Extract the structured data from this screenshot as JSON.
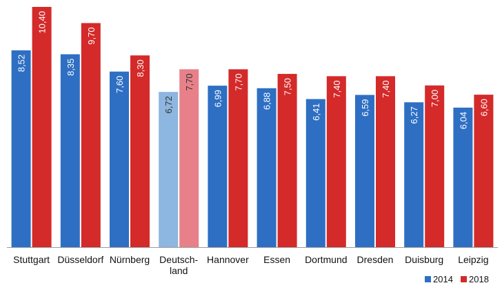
{
  "chart_data": {
    "type": "bar",
    "categories": [
      "Stuttgart",
      "Düsseldorf",
      "Nürnberg",
      "Deutsch-\nland",
      "Hannover",
      "Essen",
      "Dortmund",
      "Dresden",
      "Duisburg",
      "Leipzig"
    ],
    "series": [
      {
        "name": "2014",
        "values": [
          8.52,
          8.35,
          7.6,
          6.72,
          6.99,
          6.88,
          6.41,
          6.59,
          6.27,
          6.04
        ],
        "labels": [
          "8,52",
          "8,35",
          "7,60",
          "6,72",
          "6,99",
          "6,88",
          "6,41",
          "6,59",
          "6,27",
          "6,04"
        ],
        "color": "#2e6fc3",
        "highlight_color": "#8db6e0"
      },
      {
        "name": "2018",
        "values": [
          10.4,
          9.7,
          8.3,
          7.7,
          7.7,
          7.5,
          7.4,
          7.4,
          7.0,
          6.6
        ],
        "labels": [
          "10,40",
          "9,70",
          "8,30",
          "7,70",
          "7,70",
          "7,50",
          "7,40",
          "7,40",
          "7,00",
          "6,60"
        ],
        "color": "#d42a2a",
        "highlight_color": "#e8808a"
      }
    ],
    "highlight_category_index": 3,
    "ylim": [
      0,
      10.4
    ],
    "grid": false,
    "legend_position": "bottom-right",
    "title": "",
    "xlabel": "",
    "ylabel": ""
  }
}
